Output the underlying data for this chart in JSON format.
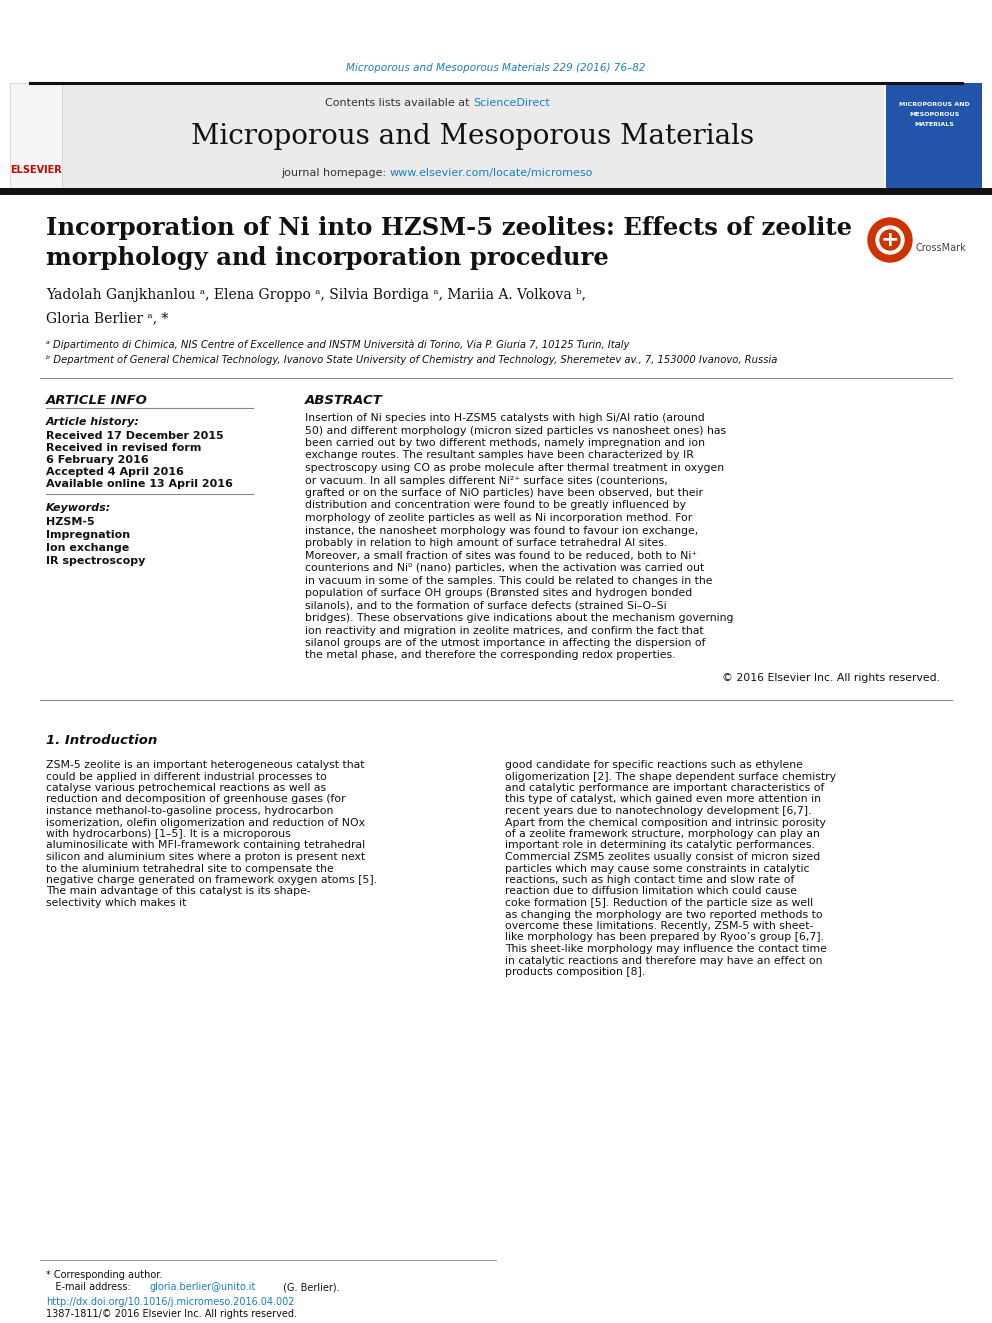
{
  "journal_ref": "Microporous and Mesoporous Materials 229 (2016) 76–82",
  "journal_name": "Microporous and Mesoporous Materials",
  "contents_text": "Contents lists available at ",
  "sciencedirect": "ScienceDirect",
  "homepage_text": "journal homepage: ",
  "homepage_url": "www.elsevier.com/locate/micromeso",
  "paper_title_line1": "Incorporation of Ni into HZSM-5 zeolites: Effects of zeolite",
  "paper_title_line2": "morphology and incorporation procedure",
  "authors": "Yadolah Ganjkhanlou ᵃ, Elena Groppo ᵃ, Silvia Bordiga ᵃ, Mariia A. Volkova ᵇ,",
  "authors2": "Gloria Berlier ᵃ, *",
  "affil_a": "ᵃ Dipartimento di Chimica, NIS Centre of Excellence and INSTM Università di Torino, Via P. Giuria 7, 10125 Turin, Italy",
  "affil_b": "ᵇ Department of General Chemical Technology, Ivanovo State University of Chemistry and Technology, Sheremetev av., 7, 153000 Ivanovo, Russia",
  "article_info_title": "ARTICLE INFO",
  "article_history_label": "Article history:",
  "received": "Received 17 December 2015",
  "received_revised": "Received in revised form",
  "revised_date": "6 February 2016",
  "accepted": "Accepted 4 April 2016",
  "available": "Available online 13 April 2016",
  "keywords_label": "Keywords:",
  "keywords": [
    "HZSM-5",
    "Impregnation",
    "Ion exchange",
    "IR spectroscopy"
  ],
  "abstract_title": "ABSTRACT",
  "abstract_text": "Insertion of Ni species into H-ZSM5 catalysts with high Si/Al ratio (around 50) and different morphology (micron sized particles vs nanosheet ones) has been carried out by two different methods, namely impregnation and ion exchange routes. The resultant samples have been characterized by IR spectroscopy using CO as probe molecule after thermal treatment in oxygen or vacuum. In all samples different Ni²⁺ surface sites (counterions, grafted or on the surface of NiO particles) have been observed, but their distribution and concentration were found to be greatly influenced by morphology of zeolite particles as well as Ni incorporation method. For instance, the nanosheet morphology was found to favour ion exchange, probably in relation to high amount of surface tetrahedral Al sites. Moreover, a small fraction of sites was found to be reduced, both to Ni⁺ counterions and Ni⁰ (nano) particles, when the activation was carried out in vacuum in some of the samples. This could be related to changes in the population of surface OH groups (Brønsted sites and hydrogen bonded silanols), and to the formation of surface defects (strained Si–O–Si bridges). These observations give indications about the mechanism governing ion reactivity and migration in zeolite matrices, and confirm the fact that silanol groups are of the utmost importance in affecting the dispersion of the metal phase, and therefore the corresponding redox properties.",
  "copyright": "© 2016 Elsevier Inc. All rights reserved.",
  "intro_heading": "1. Introduction",
  "intro_col1": "ZSM-5 zeolite is an important heterogeneous catalyst that could be applied in different industrial processes to catalyse various petrochemical reactions as well as reduction and decomposition of greenhouse gases (for instance methanol-to-gasoline process, hydrocarbon isomerization, olefin oligomerization and reduction of NOx with hydrocarbons) [1–5]. It is a microporous aluminosilicate with MFI-framework containing tetrahedral silicon and aluminium sites where a proton is present next to the aluminium tetrahedral site to compensate the negative charge generated on framework oxygen atoms [5]. The main advantage of this catalyst is its shape-selectivity which makes it",
  "intro_col2": "good candidate for specific reactions such as ethylene oligomerization [2]. The shape dependent surface chemistry and catalytic performance are important characteristics of this type of catalyst, which gained even more attention in recent years due to nanotechnology development [6,7].\n\n    Apart from the chemical composition and intrinsic porosity of a zeolite framework structure, morphology can play an important role in determining its catalytic performances. Commercial ZSM5 zeolites usually consist of micron sized particles which may cause some constraints in catalytic reactions, such as high contact time and slow rate of reaction due to diffusion limitation which could cause coke formation [5]. Reduction of the particle size as well as changing the morphology are two reported methods to overcome these limitations. Recently, ZSM-5 with sheet-like morphology has been prepared by Ryoo’s group [6,7]. This sheet-like morphology may influence the contact time in catalytic reactions and therefore may have an effect on products composition [8].",
  "footer_note": "* Corresponding author.\n   E-mail address: gloria.berlier@unito.it (G. Berlier).",
  "footer_doi": "http://dx.doi.org/10.1016/j.micromeso.2016.04.002",
  "footer_issn": "1387-1811/© 2016 Elsevier Inc. All rights reserved.",
  "bg_color": "#ffffff",
  "header_bg": "#e8e8e8",
  "bar_color": "#1a1a1a",
  "teal_color": "#008080",
  "blue_link": "#1a7fc1",
  "section_line_color": "#555555"
}
